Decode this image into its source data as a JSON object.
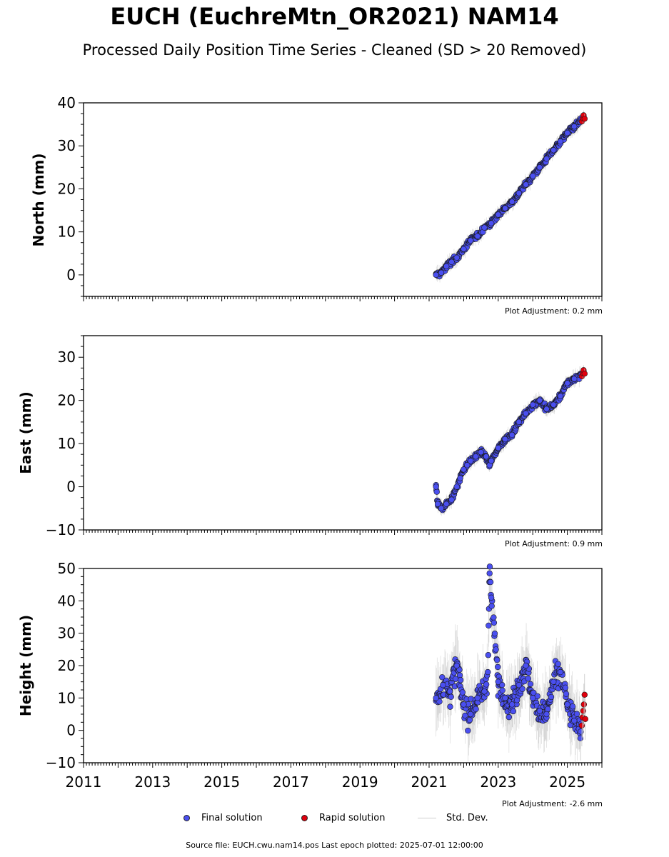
{
  "title": "EUCH (EuchreMtn_OR2021) NAM14",
  "subtitle": "Processed Daily Position Time Series - Cleaned (SD > 20 Removed)",
  "legend": {
    "final": "Final solution",
    "rapid": "Rapid solution",
    "stddev": "Std. Dev."
  },
  "footer": "Source file: EUCH.cwu.nam14.pos  Last epoch plotted: 2025-07-01 12:00:00",
  "colors": {
    "final": "#4a4ff0",
    "rapid": "#e0000d",
    "stddev": "#bdbdbd",
    "marker_edge": "#1a1a1a"
  },
  "chart_data": [
    {
      "type": "scatter",
      "ylabel": "North (mm)",
      "adjustment": "Plot Adjustment: 0.2 mm",
      "xlim": [
        2011,
        2026
      ],
      "ylim": [
        -5,
        40
      ],
      "yticks": [
        0,
        10,
        20,
        30,
        40
      ],
      "ytick_labels": [
        "0",
        "10",
        "20",
        "30",
        "40"
      ],
      "xticks": [
        2011,
        2013,
        2015,
        2017,
        2019,
        2021,
        2023,
        2025
      ],
      "series": [
        {
          "name": "Final solution",
          "x": [
            2021.2,
            2021.35,
            2021.5,
            2021.65,
            2021.8,
            2022.0,
            2022.2,
            2022.4,
            2022.6,
            2022.8,
            2023.0,
            2023.2,
            2023.4,
            2023.6,
            2023.8,
            2024.0,
            2024.2,
            2024.4,
            2024.6,
            2024.8,
            2025.0,
            2025.2,
            2025.4
          ],
          "y": [
            0,
            0.5,
            2,
            3,
            4,
            6,
            8,
            9,
            11,
            12,
            14,
            15.5,
            17,
            19,
            21,
            23,
            25,
            27,
            29,
            31,
            33,
            34.5,
            36
          ]
        },
        {
          "name": "Rapid solution",
          "x": [
            2025.42,
            2025.45,
            2025.47,
            2025.5
          ],
          "y": [
            35.7,
            36.4,
            37.1,
            36.3
          ]
        }
      ]
    },
    {
      "type": "scatter",
      "ylabel": "East (mm)",
      "adjustment": "Plot Adjustment: 0.9 mm",
      "xlim": [
        2011,
        2026
      ],
      "ylim": [
        -10,
        35
      ],
      "yticks": [
        -10,
        0,
        10,
        20,
        30
      ],
      "ytick_labels": [
        "−10",
        "0",
        "10",
        "20",
        "30"
      ],
      "xticks": [
        2011,
        2013,
        2015,
        2017,
        2019,
        2021,
        2023,
        2025
      ],
      "series": [
        {
          "name": "Final solution",
          "x": [
            2021.2,
            2021.25,
            2021.35,
            2021.5,
            2021.65,
            2021.8,
            2021.9,
            2022.0,
            2022.1,
            2022.2,
            2022.35,
            2022.5,
            2022.65,
            2022.75,
            2022.8,
            2023.0,
            2023.2,
            2023.4,
            2023.6,
            2023.8,
            2024.0,
            2024.2,
            2024.4,
            2024.6,
            2024.8,
            2025.0,
            2025.2,
            2025.4
          ],
          "y": [
            0,
            -4,
            -5,
            -4,
            -3,
            0,
            2,
            4,
            5,
            6,
            7,
            8,
            7,
            5,
            6,
            9,
            11,
            12,
            15,
            17,
            19,
            20,
            18,
            19,
            21,
            24,
            25,
            26
          ]
        },
        {
          "name": "Rapid solution",
          "x": [
            2025.42,
            2025.45,
            2025.47,
            2025.5
          ],
          "y": [
            25.6,
            26.3,
            27.0,
            26.2
          ]
        }
      ]
    },
    {
      "type": "scatter",
      "ylabel": "Height (mm)",
      "adjustment": "Plot Adjustment: -2.6 mm",
      "xlim": [
        2011,
        2026
      ],
      "ylim": [
        -10,
        50
      ],
      "yticks": [
        -10,
        0,
        10,
        20,
        30,
        40,
        50
      ],
      "ytick_labels": [
        "−10",
        "0",
        "10",
        "20",
        "30",
        "40",
        "50"
      ],
      "xticks": [
        2011,
        2013,
        2015,
        2017,
        2019,
        2021,
        2023,
        2025
      ],
      "xtick_labels": [
        "2011",
        "2013",
        "2015",
        "2017",
        "2019",
        "2021",
        "2023",
        "2025"
      ],
      "series": [
        {
          "name": "Final solution",
          "x": [
            2021.2,
            2021.4,
            2021.6,
            2021.8,
            2022.0,
            2022.2,
            2022.4,
            2022.6,
            2022.7,
            2022.75,
            2022.8,
            2023.0,
            2023.2,
            2023.4,
            2023.6,
            2023.8,
            2024.0,
            2024.2,
            2024.4,
            2024.6,
            2024.8,
            2025.0,
            2025.2,
            2025.4
          ],
          "y": [
            10,
            14,
            12,
            20,
            8,
            5,
            10,
            12,
            18,
            48.5,
            41,
            15,
            10,
            8,
            14,
            20,
            10,
            6,
            5,
            15,
            18,
            8,
            3,
            2
          ]
        },
        {
          "name": "Rapid solution",
          "x": [
            2025.42,
            2025.44,
            2025.46,
            2025.48,
            2025.5,
            2025.52
          ],
          "y": [
            1.5,
            4,
            6,
            8,
            11,
            3.5
          ]
        }
      ]
    }
  ]
}
